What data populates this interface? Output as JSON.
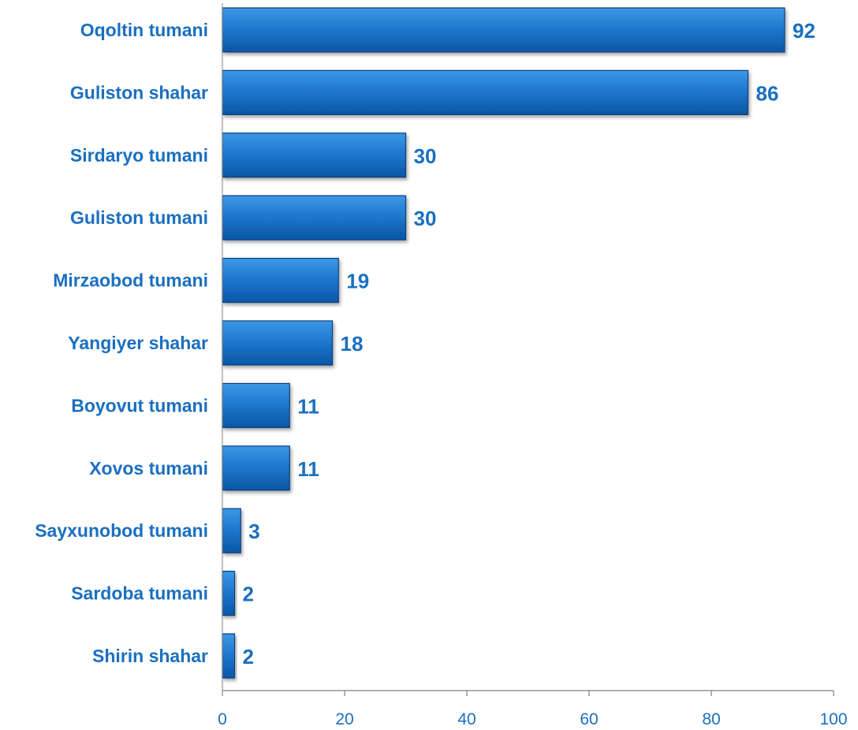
{
  "chart_data": {
    "type": "bar",
    "orientation": "horizontal",
    "title": "",
    "xlabel": "",
    "ylabel": "",
    "categories": [
      "Oqoltin tumani",
      "Guliston shahar",
      "Sirdaryo tumani",
      "Guliston tumani",
      "Mirzaobod tumani",
      "Yangiyer shahar",
      "Boyovut tumani",
      "Xovos tumani",
      "Sayxunobod tumani",
      "Sardoba tumani",
      "Shirin shahar"
    ],
    "values": [
      92,
      86,
      30,
      30,
      19,
      18,
      11,
      11,
      3,
      2,
      2
    ],
    "value_labels": [
      "92",
      "86",
      "30",
      "30",
      "19",
      "18",
      "11",
      "11",
      "3",
      "2",
      "2"
    ],
    "xlim": [
      0,
      100
    ],
    "x_ticks": [
      0,
      20,
      40,
      60,
      80,
      100
    ],
    "x_tick_labels": [
      "0",
      "20",
      "40",
      "60",
      "80",
      "100"
    ],
    "grid": false,
    "legend": "none",
    "colors": {
      "bar_top": "#3c98e6",
      "bar_bottom": "#0a56a6",
      "bar_edge": "#0b3f7a",
      "text": "#1a6fc0",
      "axis": "#7f7f7f"
    }
  }
}
